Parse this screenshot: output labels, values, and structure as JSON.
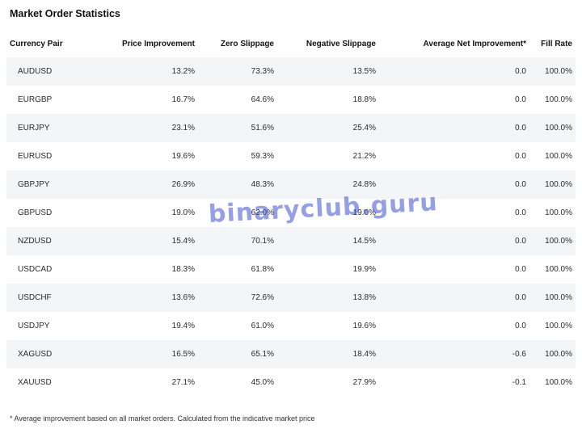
{
  "title": "Market Order Statistics",
  "columns": [
    "Currency Pair",
    "Price Improvement",
    "Zero Slippage",
    "Negative Slippage",
    "Average Net Improvement*",
    "Fill Rate"
  ],
  "rows": [
    [
      "AUDUSD",
      "13.2%",
      "73.3%",
      "13.5%",
      "0.0",
      "100.0%"
    ],
    [
      "EURGBP",
      "16.7%",
      "64.6%",
      "18.8%",
      "0.0",
      "100.0%"
    ],
    [
      "EURJPY",
      "23.1%",
      "51.6%",
      "25.4%",
      "0.0",
      "100.0%"
    ],
    [
      "EURUSD",
      "19.6%",
      "59.3%",
      "21.2%",
      "0.0",
      "100.0%"
    ],
    [
      "GBPJPY",
      "26.9%",
      "48.3%",
      "24.8%",
      "0.0",
      "100.0%"
    ],
    [
      "GBPUSD",
      "19.0%",
      "62.0%",
      "19.0%",
      "0.0",
      "100.0%"
    ],
    [
      "NZDUSD",
      "15.4%",
      "70.1%",
      "14.5%",
      "0.0",
      "100.0%"
    ],
    [
      "USDCAD",
      "18.3%",
      "61.8%",
      "19.9%",
      "0.0",
      "100.0%"
    ],
    [
      "USDCHF",
      "13.6%",
      "72.6%",
      "13.8%",
      "0.0",
      "100.0%"
    ],
    [
      "USDJPY",
      "19.4%",
      "61.0%",
      "19.6%",
      "0.0",
      "100.0%"
    ],
    [
      "XAGUSD",
      "16.5%",
      "65.1%",
      "18.4%",
      "-0.6",
      "100.0%"
    ],
    [
      "XAUUSD",
      "27.1%",
      "45.0%",
      "27.9%",
      "-0.1",
      "100.0%"
    ]
  ],
  "footnote": "* Average improvement based on all market orders. Calculated from the indicative market price",
  "watermark": "binaryclub.guru",
  "colors": {
    "row_stripe": "#f4f5f7",
    "watermark": "#3c50d2"
  }
}
